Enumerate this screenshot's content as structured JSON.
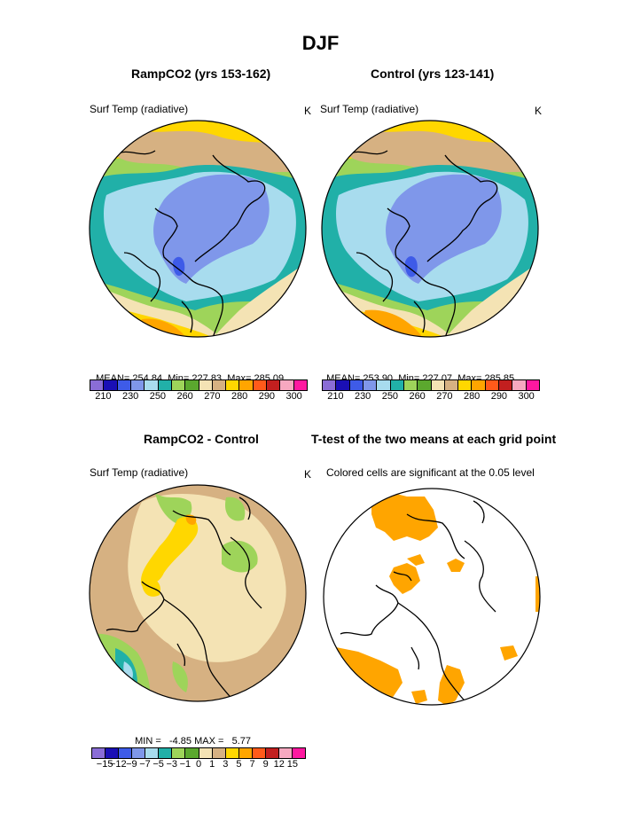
{
  "title": "DJF",
  "panels": [
    {
      "id": "rampco2",
      "title": "RampCO2 (yrs 153-162)",
      "variable": "Surf Temp (radiative)",
      "units": "K",
      "stats": {
        "mean_label": "MEAN=",
        "mean": "254.84",
        "min_label": "Min=",
        "min": "227.83",
        "max_label": "Max=",
        "max": "285.09"
      },
      "colorbar_labels": [
        "210",
        "230",
        "250",
        "260",
        "270",
        "280",
        "290",
        "300"
      ]
    },
    {
      "id": "control",
      "title": "Control (yrs 123-141)",
      "variable": "Surf Temp (radiative)",
      "units": "K",
      "stats": {
        "mean_label": "MEAN=",
        "mean": "253.90",
        "min_label": "Min=",
        "min": "227.07",
        "max_label": "Max=",
        "max": "285.85"
      },
      "colorbar_labels": [
        "210",
        "230",
        "250",
        "260",
        "270",
        "280",
        "290",
        "300"
      ]
    },
    {
      "id": "difference",
      "title": "RampCO2 - Control",
      "variable": "Surf Temp (radiative)",
      "units": "K",
      "stats": {
        "min_label": "MIN =",
        "min": "-4.85",
        "max_label": "MAX =",
        "max": "5.77"
      },
      "colorbar_labels": [
        "−15",
        "−12",
        "−9",
        "−7",
        "−5",
        "−3",
        "−1",
        "0",
        "1",
        "3",
        "5",
        "7",
        "9",
        "12",
        "15"
      ]
    },
    {
      "id": "ttest",
      "title": "T-test of the two means at each grid point",
      "note": "Colored cells are significant at the 0.05 level"
    }
  ],
  "colors": {
    "palette": [
      "#8a6dd6",
      "#1a0fb5",
      "#3e5be8",
      "#7f97ea",
      "#a8dcee",
      "#21b0a8",
      "#9ed45a",
      "#5ba82e",
      "#f4e3b4",
      "#d6b182",
      "#ffd700",
      "#ffa500",
      "#ff5a1a",
      "#c21f1f",
      "#f7a8c0",
      "#ff18a0"
    ],
    "significant": "#ffa500",
    "coastline": "#000000"
  }
}
